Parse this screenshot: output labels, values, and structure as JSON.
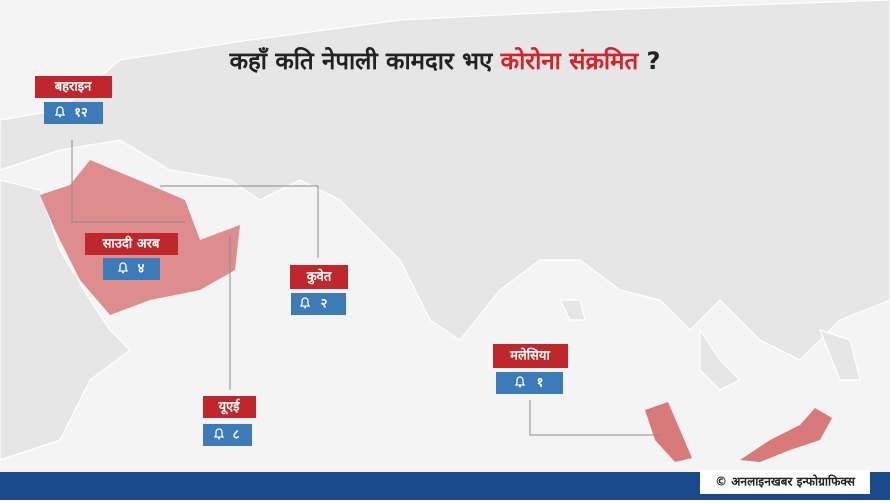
{
  "title": {
    "part1": "कहाँ कति नेपाली कामदार भए",
    "part2": "कोरोना संक्रमित",
    "part3": "?"
  },
  "countries": [
    {
      "name": "बहराइन",
      "count": "१२"
    },
    {
      "name": "साउदी अरब",
      "count": "४"
    },
    {
      "name": "कुवेत",
      "count": "२"
    },
    {
      "name": "यूएई",
      "count": "८"
    },
    {
      "name": "मलेसिया",
      "count": "१"
    }
  ],
  "credit": "© अनलाइनखबर इन्फोग्राफिक्स"
}
